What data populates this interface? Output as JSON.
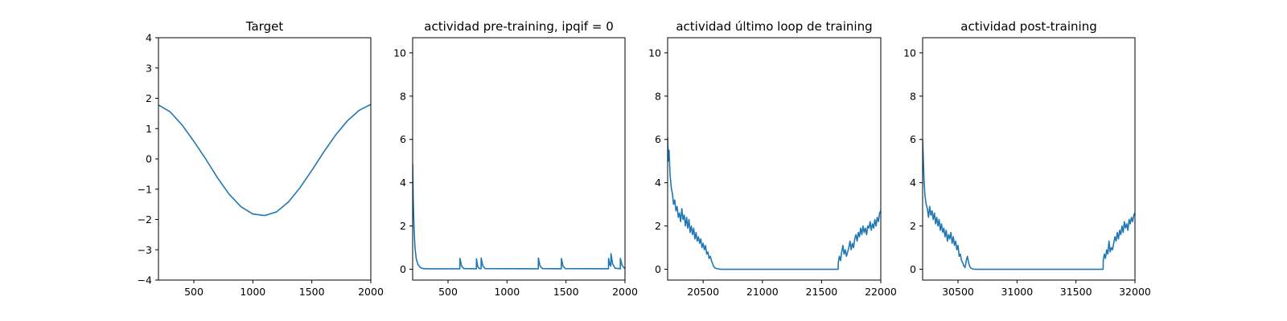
{
  "chart_data": [
    {
      "type": "line",
      "title": "Target",
      "xlabel": "",
      "ylabel": "",
      "xlim": [
        200,
        2000
      ],
      "ylim": [
        -4,
        4
      ],
      "xticks": [
        500,
        1000,
        1500,
        2000
      ],
      "yticks": [
        -4,
        -3,
        -2,
        -1,
        0,
        1,
        2,
        3,
        4
      ],
      "xtick_labels": [
        "500",
        "1000",
        "1500",
        "2000"
      ],
      "ytick_labels": [
        "−4",
        "−3",
        "−2",
        "−1",
        "0",
        "1",
        "2",
        "3",
        "4"
      ],
      "grid": false,
      "series": [
        {
          "color": "#1f77b4",
          "x": [
            200,
            300,
            400,
            500,
            600,
            700,
            800,
            900,
            1000,
            1100,
            1200,
            1300,
            1400,
            1500,
            1600,
            1700,
            1800,
            1900,
            2000
          ],
          "y": [
            1.78,
            1.55,
            1.12,
            0.58,
            0.0,
            -0.62,
            -1.17,
            -1.58,
            -1.82,
            -1.87,
            -1.75,
            -1.43,
            -0.95,
            -0.38,
            0.22,
            0.78,
            1.25,
            1.6,
            1.8
          ]
        }
      ]
    },
    {
      "type": "line",
      "title": "actividad pre-training, ipqif = 0",
      "xlabel": "",
      "ylabel": "",
      "xlim": [
        200,
        2000
      ],
      "ylim": [
        -0.5,
        10.7
      ],
      "xticks": [
        500,
        1000,
        1500,
        2000
      ],
      "yticks": [
        0,
        2,
        4,
        6,
        8,
        10
      ],
      "xtick_labels": [
        "500",
        "1000",
        "1500",
        "2000"
      ],
      "ytick_labels": [
        "0",
        "2",
        "4",
        "6",
        "8",
        "10"
      ],
      "grid": false,
      "series": [
        {
          "color": "#1f77b4",
          "x": [
            200,
            205,
            212,
            220,
            230,
            245,
            265,
            290,
            320,
            600,
            601,
            615,
            635,
            740,
            741,
            752,
            765,
            780,
            781,
            795,
            815,
            1265,
            1266,
            1280,
            1300,
            1460,
            1461,
            1475,
            1495,
            1860,
            1861,
            1872,
            1880,
            1881,
            1895,
            1915,
            1960,
            1961,
            1975,
            1995,
            2000
          ],
          "y": [
            4.9,
            3.2,
            1.9,
            1.0,
            0.5,
            0.22,
            0.08,
            0.03,
            0.02,
            0.02,
            0.5,
            0.15,
            0.03,
            0.02,
            0.48,
            0.12,
            0.03,
            0.03,
            0.52,
            0.15,
            0.03,
            0.02,
            0.52,
            0.15,
            0.03,
            0.02,
            0.5,
            0.14,
            0.03,
            0.02,
            0.5,
            0.2,
            0.15,
            0.72,
            0.25,
            0.05,
            0.02,
            0.5,
            0.18,
            0.05,
            0.04
          ]
        }
      ]
    },
    {
      "type": "line",
      "title": "actividad último loop de training",
      "xlabel": "",
      "ylabel": "",
      "xlim": [
        20200,
        22000
      ],
      "ylim": [
        -0.5,
        10.7
      ],
      "xticks": [
        20500,
        21000,
        21500,
        22000
      ],
      "yticks": [
        0,
        2,
        4,
        6,
        8,
        10
      ],
      "xtick_labels": [
        "20500",
        "21000",
        "21500",
        "22000"
      ],
      "ytick_labels": [
        "0",
        "2",
        "4",
        "6",
        "8",
        "10"
      ],
      "grid": false,
      "series": [
        {
          "color": "#1f77b4",
          "x": [
            20200,
            20205,
            20212,
            20220,
            20230,
            20240,
            20250,
            20260,
            20270,
            20280,
            20290,
            20300,
            20310,
            20320,
            20330,
            20340,
            20350,
            20360,
            20370,
            20380,
            20390,
            20400,
            20410,
            20420,
            20430,
            20440,
            20450,
            20460,
            20470,
            20480,
            20490,
            20500,
            20510,
            20520,
            20530,
            20540,
            20550,
            20560,
            20570,
            20580,
            20590,
            20600,
            20620,
            20650,
            20700,
            21000,
            21500,
            21640,
            21641,
            21650,
            21660,
            21670,
            21680,
            21690,
            21700,
            21710,
            21720,
            21730,
            21740,
            21750,
            21760,
            21770,
            21780,
            21790,
            21800,
            21810,
            21820,
            21830,
            21840,
            21850,
            21860,
            21870,
            21880,
            21890,
            21900,
            21910,
            21920,
            21930,
            21940,
            21950,
            21960,
            21970,
            21980,
            21990,
            22000
          ],
          "y": [
            6.1,
            5.0,
            5.5,
            4.4,
            3.8,
            3.5,
            3.0,
            3.2,
            2.7,
            2.9,
            2.4,
            2.6,
            2.2,
            2.8,
            2.3,
            2.5,
            2.0,
            2.4,
            1.9,
            2.3,
            1.7,
            2.0,
            1.6,
            1.9,
            1.4,
            1.7,
            1.3,
            1.5,
            1.2,
            1.4,
            1.0,
            1.2,
            0.9,
            1.1,
            0.7,
            0.8,
            0.5,
            0.6,
            0.4,
            0.25,
            0.12,
            0.06,
            0.02,
            0.0,
            0.0,
            0.0,
            0.0,
            0.0,
            0.3,
            0.6,
            0.4,
            0.8,
            1.1,
            0.7,
            0.9,
            0.6,
            0.8,
            1.0,
            1.3,
            0.9,
            1.2,
            1.0,
            1.4,
            1.6,
            1.3,
            1.7,
            1.5,
            1.9,
            1.6,
            2.0,
            1.7,
            1.9,
            1.6,
            2.0,
            1.9,
            2.2,
            1.8,
            2.1,
            1.9,
            2.3,
            2.0,
            2.4,
            2.2,
            2.6,
            2.7
          ]
        }
      ]
    },
    {
      "type": "line",
      "title": "actividad post-training",
      "xlabel": "",
      "ylabel": "",
      "xlim": [
        30200,
        32000
      ],
      "ylim": [
        -0.5,
        10.7
      ],
      "xticks": [
        30500,
        31000,
        31500,
        32000
      ],
      "yticks": [
        0,
        2,
        4,
        6,
        8,
        10
      ],
      "xtick_labels": [
        "30500",
        "31000",
        "31500",
        "32000"
      ],
      "ytick_labels": [
        "0",
        "2",
        "4",
        "6",
        "8",
        "10"
      ],
      "grid": false,
      "series": [
        {
          "color": "#1f77b4",
          "x": [
            30200,
            30205,
            30212,
            30220,
            30230,
            30240,
            30250,
            30260,
            30270,
            30280,
            30290,
            30300,
            30310,
            30320,
            30330,
            30340,
            30350,
            30360,
            30370,
            30380,
            30390,
            30400,
            30410,
            30420,
            30430,
            30440,
            30450,
            30460,
            30470,
            30480,
            30490,
            30500,
            30510,
            30520,
            30530,
            30540,
            30550,
            30560,
            30570,
            30580,
            30590,
            30600,
            30610,
            30620,
            30640,
            30700,
            31000,
            31500,
            31730,
            31731,
            31740,
            31750,
            31760,
            31770,
            31780,
            31790,
            31800,
            31810,
            31820,
            31830,
            31840,
            31850,
            31860,
            31870,
            31880,
            31890,
            31900,
            31910,
            31920,
            31930,
            31940,
            31950,
            31960,
            31970,
            31980,
            31990,
            32000
          ],
          "y": [
            6.0,
            5.2,
            4.1,
            3.4,
            3.0,
            2.8,
            2.4,
            2.9,
            2.5,
            2.7,
            2.3,
            2.6,
            2.1,
            2.4,
            2.0,
            2.3,
            1.8,
            2.1,
            1.7,
            1.9,
            1.5,
            1.8,
            1.3,
            1.6,
            1.4,
            1.7,
            1.2,
            1.5,
            1.1,
            1.3,
            0.9,
            1.1,
            0.6,
            0.7,
            0.4,
            0.3,
            0.15,
            0.08,
            0.4,
            0.6,
            0.3,
            0.12,
            0.05,
            0.02,
            0.0,
            0.0,
            0.0,
            0.0,
            0.0,
            0.4,
            0.7,
            0.5,
            0.9,
            0.7,
            1.3,
            0.8,
            1.0,
            0.9,
            1.2,
            1.5,
            1.3,
            1.7,
            1.4,
            1.8,
            1.6,
            2.0,
            1.7,
            2.2,
            1.9,
            2.1,
            1.8,
            2.3,
            2.1,
            2.4,
            2.2,
            2.5,
            2.6
          ]
        }
      ]
    }
  ]
}
